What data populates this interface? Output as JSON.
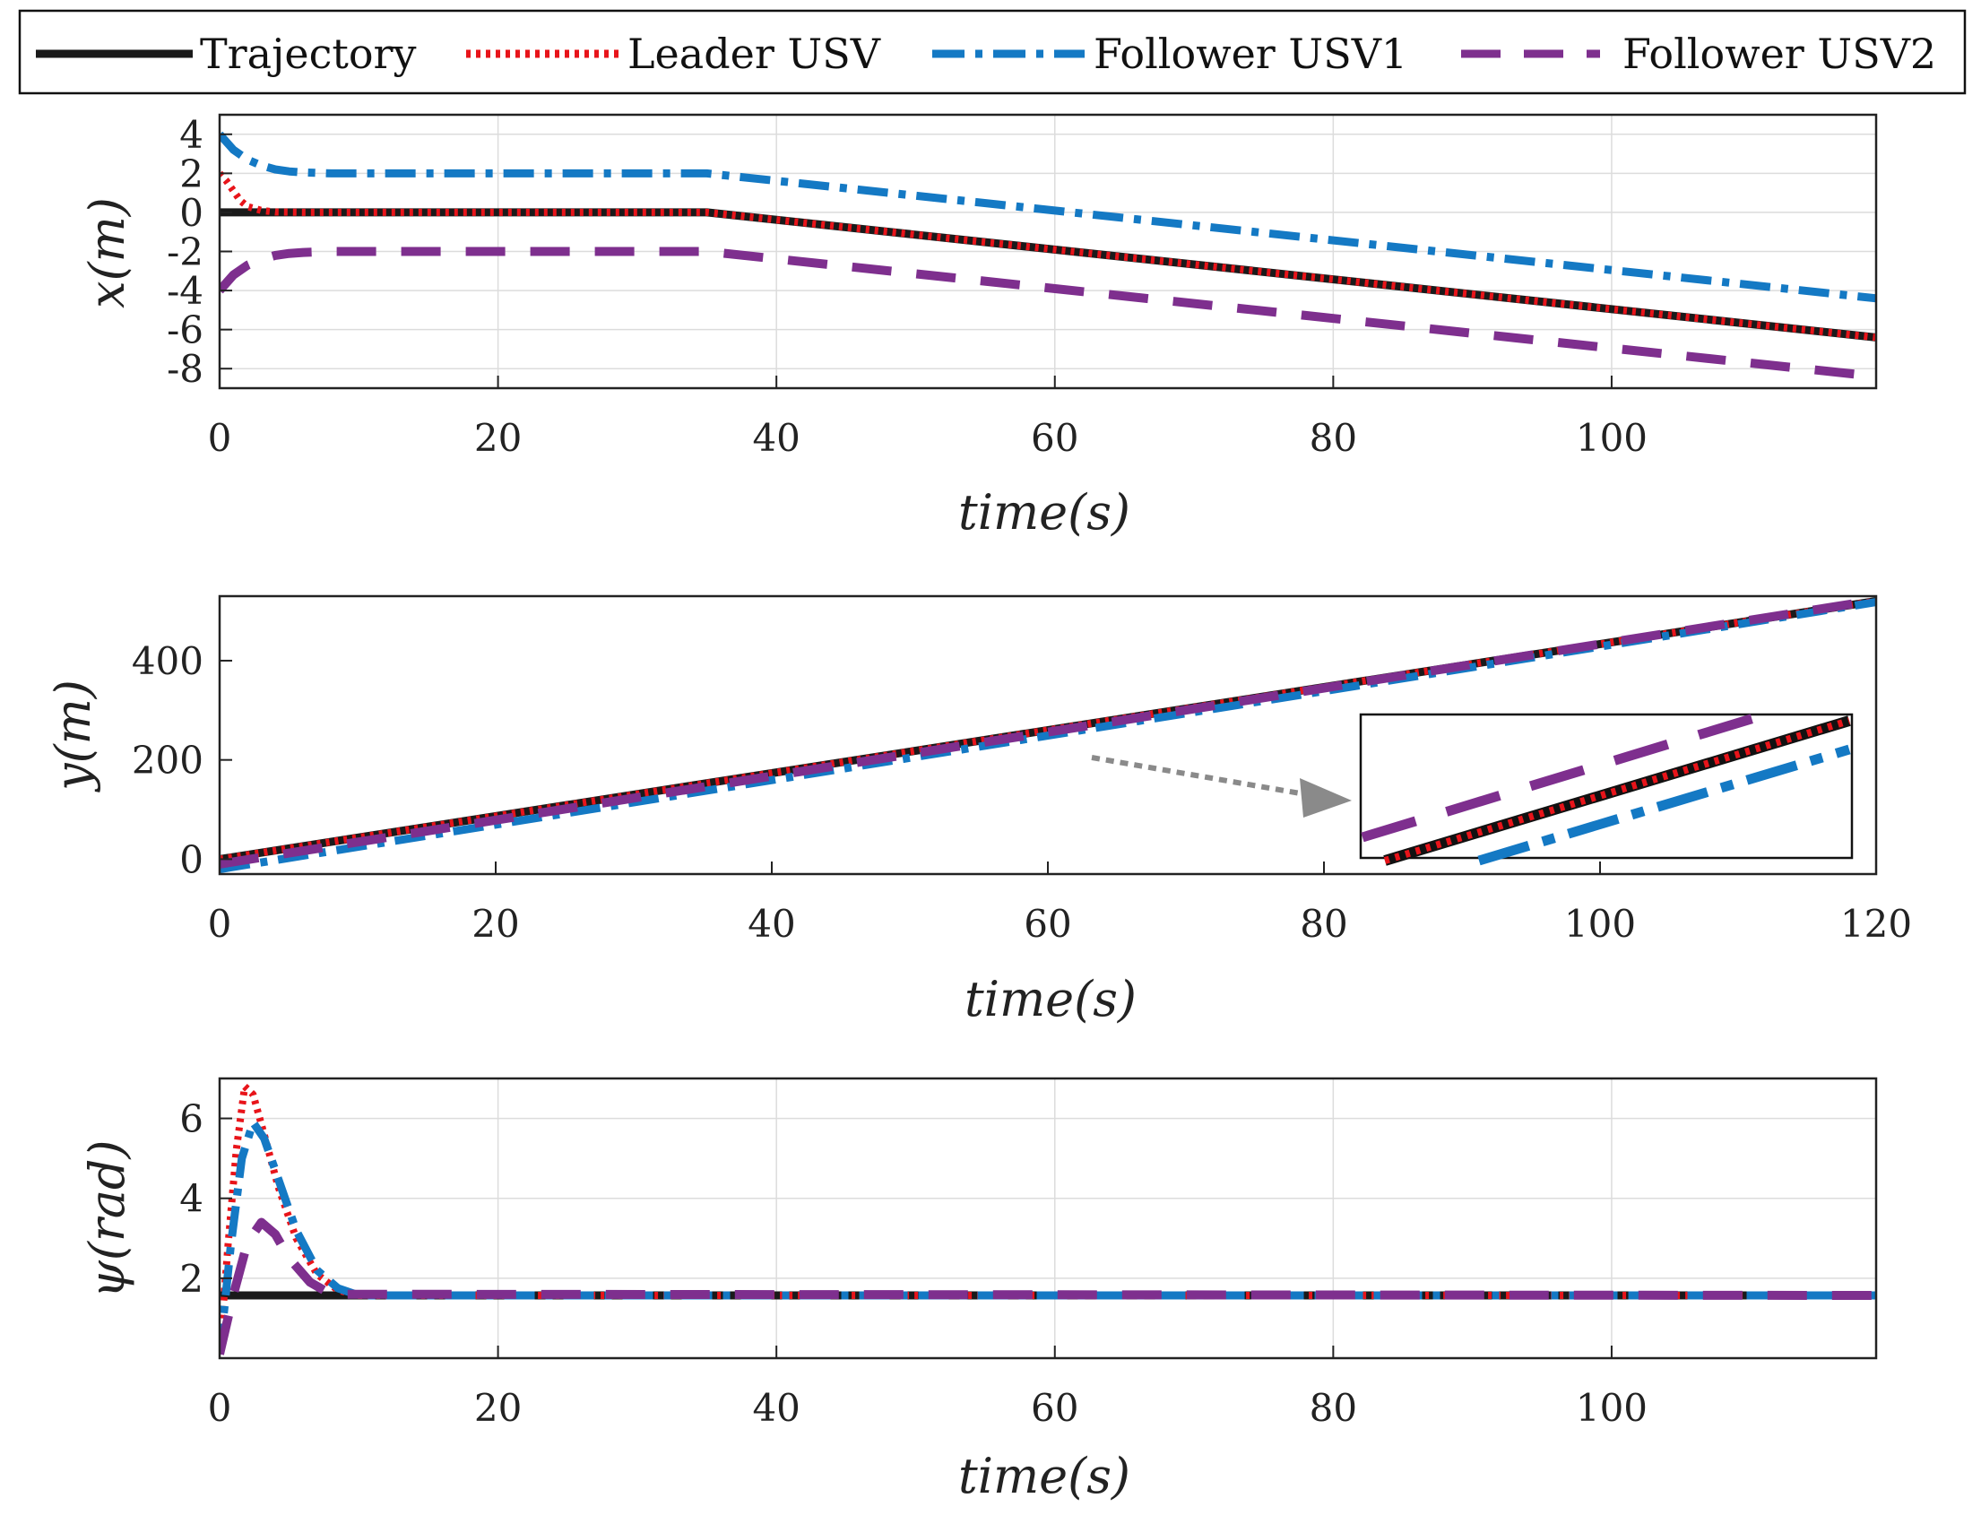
{
  "legend": {
    "location": "top",
    "entries": [
      {
        "label": "Trajectory",
        "color": "#1a1a1a",
        "style": "solid"
      },
      {
        "label": "Leader USV",
        "color": "#e8141a",
        "style": "dotted"
      },
      {
        "label": "Follower USV1",
        "color": "#1479c4",
        "style": "dashdot"
      },
      {
        "label": "Follower USV2",
        "color": "#7e2f8e",
        "style": "dashed"
      }
    ]
  },
  "chart_data": [
    {
      "type": "line",
      "title": "",
      "xlabel": "time(s)",
      "ylabel": "x(m)",
      "xlim": [
        0,
        119
      ],
      "ylim": [
        -9,
        5
      ],
      "xticks": [
        0,
        20,
        40,
        60,
        80,
        100
      ],
      "xtick_labels": [
        "0",
        "20",
        "40",
        "60",
        "80",
        "100"
      ],
      "yticks": [
        -8,
        -6,
        -4,
        -2,
        0,
        2,
        4
      ],
      "ytick_labels": [
        "-8",
        "-6",
        "-4",
        "-2",
        "0",
        "2",
        "4"
      ],
      "grid": true,
      "series": [
        {
          "name": "Trajectory",
          "x": [
            0,
            35,
            119
          ],
          "values": [
            0,
            0,
            -6.4
          ]
        },
        {
          "name": "Leader USV",
          "x": [
            0,
            0.5,
            1,
            1.5,
            2,
            3,
            4,
            6,
            35,
            119
          ],
          "values": [
            2.0,
            1.6,
            1.1,
            0.6,
            0.3,
            0.1,
            0.02,
            0,
            0,
            -6.4
          ]
        },
        {
          "name": "Follower USV1",
          "x": [
            0,
            1,
            2,
            3,
            4,
            5,
            6,
            8,
            35,
            119
          ],
          "values": [
            4.0,
            3.2,
            2.7,
            2.4,
            2.2,
            2.1,
            2.05,
            2.0,
            2.0,
            -4.4
          ]
        },
        {
          "name": "Follower USV2",
          "x": [
            0,
            1,
            2,
            3,
            4,
            5,
            6,
            8,
            35,
            119
          ],
          "values": [
            -4.0,
            -3.2,
            -2.7,
            -2.4,
            -2.2,
            -2.1,
            -2.05,
            -2.0,
            -2.0,
            -8.4
          ]
        }
      ]
    },
    {
      "type": "line",
      "title": "",
      "xlabel": "time(s)",
      "ylabel": "y(m)",
      "xlim": [
        0,
        120
      ],
      "ylim": [
        -30,
        530
      ],
      "xticks": [
        0,
        20,
        40,
        60,
        80,
        100,
        120
      ],
      "xtick_labels": [
        "0",
        "20",
        "40",
        "60",
        "80",
        "100",
        "120"
      ],
      "yticks": [
        0,
        200,
        400
      ],
      "ytick_labels": [
        "0",
        "200",
        "400"
      ],
      "grid": false,
      "series": [
        {
          "name": "Trajectory",
          "x": [
            0,
            120
          ],
          "values": [
            0,
            520
          ]
        },
        {
          "name": "Leader USV",
          "x": [
            0,
            120
          ],
          "values": [
            0,
            520
          ]
        },
        {
          "name": "Follower USV1",
          "x": [
            0,
            120
          ],
          "values": [
            -20,
            518
          ]
        },
        {
          "name": "Follower USV2",
          "x": [
            0,
            120
          ],
          "values": [
            -10,
            522
          ]
        }
      ],
      "annotations": [
        "zoom inset of the four converged lines near t = 60 s"
      ]
    },
    {
      "type": "line",
      "title": "",
      "xlabel": "time(s)",
      "ylabel": "ψ(rad)",
      "xlim": [
        0,
        119
      ],
      "ylim": [
        0,
        7
      ],
      "xticks": [
        0,
        20,
        40,
        60,
        80,
        100
      ],
      "xtick_labels": [
        "0",
        "20",
        "40",
        "60",
        "80",
        "100"
      ],
      "yticks": [
        2,
        4,
        6
      ],
      "ytick_labels": [
        "2",
        "4",
        "6"
      ],
      "grid": true,
      "series": [
        {
          "name": "Trajectory",
          "x": [
            0,
            119
          ],
          "values": [
            1.57,
            1.57
          ]
        },
        {
          "name": "Leader USV",
          "x": [
            0,
            0.6,
            1.2,
            1.8,
            2.4,
            3.2,
            4.2,
            5.5,
            7,
            8.5,
            10,
            119
          ],
          "values": [
            0.1,
            2.8,
            5.2,
            6.8,
            6.6,
            5.6,
            4.3,
            3.0,
            2.1,
            1.7,
            1.57,
            1.57
          ]
        },
        {
          "name": "Follower USV1",
          "x": [
            0,
            0.8,
            1.6,
            2.4,
            3.2,
            4.2,
            5.5,
            7,
            8.5,
            10,
            119
          ],
          "values": [
            0.1,
            2.8,
            5.0,
            5.9,
            5.5,
            4.5,
            3.2,
            2.2,
            1.75,
            1.57,
            1.57
          ]
        },
        {
          "name": "Follower USV2",
          "x": [
            0,
            1,
            2,
            3,
            4,
            5,
            6.5,
            8,
            119
          ],
          "values": [
            0.1,
            1.6,
            2.9,
            3.4,
            3.1,
            2.5,
            1.9,
            1.6,
            1.57
          ]
        }
      ]
    }
  ]
}
